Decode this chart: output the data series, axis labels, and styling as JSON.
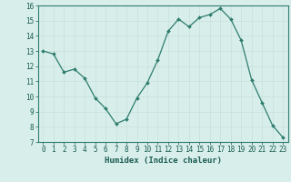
{
  "xlabel": "Humidex (Indice chaleur)",
  "ylabel": "",
  "x": [
    0,
    1,
    2,
    3,
    4,
    5,
    6,
    7,
    8,
    9,
    10,
    11,
    12,
    13,
    14,
    15,
    16,
    17,
    18,
    19,
    20,
    21,
    22,
    23
  ],
  "y": [
    13.0,
    12.8,
    11.6,
    11.8,
    11.2,
    9.9,
    9.2,
    8.2,
    8.5,
    9.9,
    10.9,
    12.4,
    14.3,
    15.1,
    14.6,
    15.2,
    15.4,
    15.8,
    15.1,
    13.7,
    11.1,
    9.6,
    8.1,
    7.3
  ],
  "ylim": [
    7,
    16
  ],
  "yticks": [
    7,
    8,
    9,
    10,
    11,
    12,
    13,
    14,
    15,
    16
  ],
  "xticks": [
    0,
    1,
    2,
    3,
    4,
    5,
    6,
    7,
    8,
    9,
    10,
    11,
    12,
    13,
    14,
    15,
    16,
    17,
    18,
    19,
    20,
    21,
    22,
    23
  ],
  "line_color": "#2e7d6e",
  "marker_color": "#2e7d6e",
  "bg_color": "#d8eeeb",
  "grid_major_color": "#c8e0dc",
  "grid_minor_color": "#e0f0ed",
  "axes_color": "#2e7d6e",
  "tick_color": "#1a5c50",
  "label_color": "#1a5c50",
  "font_family": "monospace",
  "axis_label_fontsize": 6.5,
  "tick_fontsize": 5.5
}
